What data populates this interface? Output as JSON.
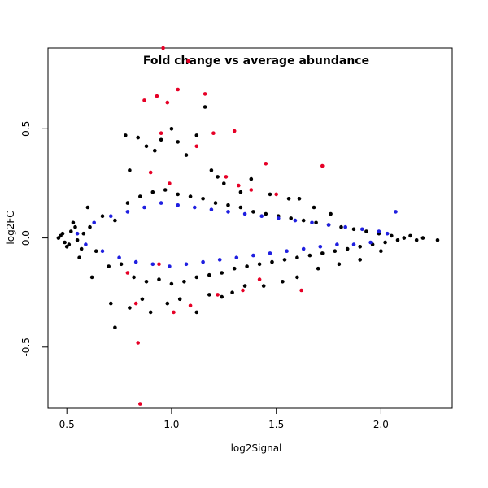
{
  "chart_data": {
    "type": "scatter",
    "title": "Fold change vs average abundance",
    "xlabel": "log2Signal",
    "ylabel": "log2FC",
    "xlim": [
      0.41,
      2.34
    ],
    "ylim": [
      -0.78,
      0.87
    ],
    "x_ticks": [
      0.5,
      1.0,
      1.5,
      2.0
    ],
    "x_tick_labels": [
      "0.5",
      "1.0",
      "1.5",
      "2.0"
    ],
    "y_ticks": [
      -0.5,
      0.0,
      0.5
    ],
    "y_tick_labels": [
      "-0.5",
      "0.0",
      "0.5"
    ],
    "grid": false,
    "legend": "none",
    "colors": {
      "background": "#e60026",
      "mid": "#1f1fe0",
      "high": "#000000"
    },
    "series": [
      {
        "color": "#000000",
        "points": [
          [
            0.47,
            0.01
          ],
          [
            0.49,
            -0.02
          ],
          [
            0.52,
            0.03
          ],
          [
            0.55,
            -0.01
          ],
          [
            0.58,
            0.02
          ],
          [
            0.61,
            0.05
          ],
          [
            0.64,
            -0.06
          ],
          [
            0.67,
            0.1
          ],
          [
            0.7,
            -0.13
          ],
          [
            0.73,
            0.08
          ],
          [
            0.76,
            -0.12
          ],
          [
            0.79,
            0.16
          ],
          [
            0.82,
            -0.18
          ],
          [
            0.85,
            0.19
          ],
          [
            0.88,
            -0.2
          ],
          [
            0.91,
            0.21
          ],
          [
            0.94,
            -0.19
          ],
          [
            0.97,
            0.22
          ],
          [
            1.0,
            -0.21
          ],
          [
            1.03,
            0.2
          ],
          [
            1.06,
            -0.2
          ],
          [
            1.09,
            0.19
          ],
          [
            1.12,
            -0.18
          ],
          [
            1.15,
            0.18
          ],
          [
            1.18,
            -0.17
          ],
          [
            1.21,
            0.16
          ],
          [
            1.24,
            -0.16
          ],
          [
            1.27,
            0.15
          ],
          [
            1.3,
            -0.14
          ],
          [
            1.33,
            0.14
          ],
          [
            1.36,
            -0.13
          ],
          [
            1.39,
            0.12
          ],
          [
            1.42,
            -0.12
          ],
          [
            1.45,
            0.11
          ],
          [
            1.48,
            -0.11
          ],
          [
            1.51,
            0.1
          ],
          [
            1.54,
            -0.1
          ],
          [
            1.57,
            0.09
          ],
          [
            1.6,
            -0.09
          ],
          [
            1.63,
            0.08
          ],
          [
            1.66,
            -0.08
          ],
          [
            1.69,
            0.07
          ],
          [
            1.72,
            -0.07
          ],
          [
            1.75,
            0.06
          ],
          [
            1.78,
            -0.06
          ],
          [
            1.81,
            0.05
          ],
          [
            1.84,
            -0.05
          ],
          [
            1.87,
            0.04
          ],
          [
            1.9,
            -0.04
          ],
          [
            1.93,
            0.03
          ],
          [
            1.96,
            -0.03
          ],
          [
            1.99,
            0.02
          ],
          [
            2.02,
            -0.02
          ],
          [
            2.05,
            0.01
          ],
          [
            2.08,
            -0.01
          ],
          [
            2.11,
            0.0
          ],
          [
            2.14,
            0.01
          ],
          [
            2.17,
            -0.01
          ],
          [
            2.2,
            0.0
          ],
          [
            2.27,
            -0.01
          ],
          [
            0.73,
            -0.41
          ],
          [
            0.78,
            0.47
          ],
          [
            0.8,
            0.31
          ],
          [
            0.84,
            0.46
          ],
          [
            0.88,
            0.42
          ],
          [
            0.92,
            0.4
          ],
          [
            0.95,
            0.45
          ],
          [
            1.0,
            0.5
          ],
          [
            1.03,
            0.44
          ],
          [
            1.07,
            0.38
          ],
          [
            1.12,
            0.47
          ],
          [
            1.16,
            0.6
          ],
          [
            1.19,
            0.31
          ],
          [
            1.22,
            0.28
          ],
          [
            1.25,
            0.25
          ],
          [
            1.33,
            0.21
          ],
          [
            1.38,
            0.27
          ],
          [
            1.47,
            0.2
          ],
          [
            1.56,
            0.18
          ],
          [
            1.61,
            0.18
          ],
          [
            1.68,
            0.14
          ],
          [
            1.76,
            0.11
          ],
          [
            0.71,
            -0.3
          ],
          [
            0.8,
            -0.32
          ],
          [
            0.86,
            -0.28
          ],
          [
            0.9,
            -0.34
          ],
          [
            0.98,
            -0.3
          ],
          [
            1.04,
            -0.28
          ],
          [
            1.12,
            -0.34
          ],
          [
            1.18,
            -0.26
          ],
          [
            1.24,
            -0.27
          ],
          [
            1.29,
            -0.25
          ],
          [
            1.35,
            -0.22
          ],
          [
            1.44,
            -0.22
          ],
          [
            1.53,
            -0.2
          ],
          [
            1.6,
            -0.18
          ],
          [
            1.7,
            -0.14
          ],
          [
            1.8,
            -0.12
          ],
          [
            1.9,
            -0.1
          ],
          [
            2.0,
            -0.06
          ],
          [
            0.62,
            -0.18
          ],
          [
            0.6,
            0.14
          ],
          [
            0.56,
            -0.09
          ],
          [
            0.53,
            0.07
          ],
          [
            0.5,
            -0.04
          ],
          [
            0.46,
            0.0
          ],
          [
            0.48,
            0.02
          ],
          [
            0.51,
            -0.03
          ],
          [
            0.54,
            0.05
          ],
          [
            0.57,
            -0.05
          ]
        ]
      },
      {
        "color": "#1f1fe0",
        "points": [
          [
            0.55,
            0.02
          ],
          [
            0.59,
            -0.03
          ],
          [
            0.63,
            0.07
          ],
          [
            0.67,
            -0.06
          ],
          [
            0.71,
            0.1
          ],
          [
            0.75,
            -0.09
          ],
          [
            0.79,
            0.12
          ],
          [
            0.83,
            -0.11
          ],
          [
            0.87,
            0.14
          ],
          [
            0.91,
            -0.12
          ],
          [
            0.95,
            0.16
          ],
          [
            0.99,
            -0.13
          ],
          [
            1.03,
            0.15
          ],
          [
            1.07,
            -0.12
          ],
          [
            1.11,
            0.14
          ],
          [
            1.15,
            -0.11
          ],
          [
            1.19,
            0.13
          ],
          [
            1.23,
            -0.1
          ],
          [
            1.27,
            0.12
          ],
          [
            1.31,
            -0.09
          ],
          [
            1.35,
            0.11
          ],
          [
            1.39,
            -0.08
          ],
          [
            1.43,
            0.1
          ],
          [
            1.47,
            -0.07
          ],
          [
            1.51,
            0.09
          ],
          [
            1.55,
            -0.06
          ],
          [
            1.59,
            0.08
          ],
          [
            1.63,
            -0.05
          ],
          [
            1.67,
            0.07
          ],
          [
            1.71,
            -0.04
          ],
          [
            1.75,
            0.06
          ],
          [
            1.79,
            -0.03
          ],
          [
            1.83,
            0.05
          ],
          [
            1.87,
            -0.03
          ],
          [
            1.91,
            0.04
          ],
          [
            1.95,
            -0.02
          ],
          [
            1.99,
            0.03
          ],
          [
            2.03,
            0.02
          ],
          [
            2.07,
            0.12
          ]
        ]
      },
      {
        "color": "#e60026",
        "points": [
          [
            0.85,
            -0.76
          ],
          [
            0.84,
            -0.48
          ],
          [
            0.96,
            0.87
          ],
          [
            1.08,
            0.81
          ],
          [
            1.03,
            0.68
          ],
          [
            1.16,
            0.66
          ],
          [
            0.87,
            0.63
          ],
          [
            0.93,
            0.65
          ],
          [
            0.98,
            0.62
          ],
          [
            1.3,
            0.49
          ],
          [
            0.95,
            0.48
          ],
          [
            1.2,
            0.48
          ],
          [
            1.12,
            0.42
          ],
          [
            1.45,
            0.34
          ],
          [
            1.72,
            0.33
          ],
          [
            1.26,
            0.28
          ],
          [
            1.32,
            0.24
          ],
          [
            1.38,
            0.22
          ],
          [
            1.5,
            0.2
          ],
          [
            0.99,
            0.25
          ],
          [
            0.9,
            0.3
          ],
          [
            1.01,
            -0.34
          ],
          [
            1.09,
            -0.31
          ],
          [
            1.22,
            -0.26
          ],
          [
            1.34,
            -0.24
          ],
          [
            1.62,
            -0.24
          ],
          [
            0.83,
            -0.3
          ],
          [
            0.79,
            -0.16
          ],
          [
            0.94,
            -0.12
          ],
          [
            1.42,
            -0.19
          ]
        ]
      }
    ]
  }
}
